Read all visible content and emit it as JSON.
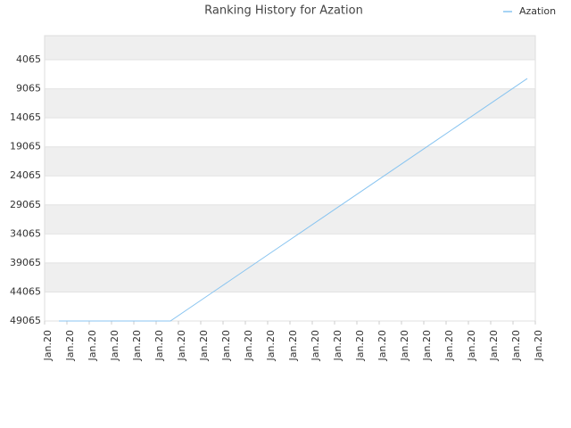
{
  "chart_data": {
    "type": "line",
    "title": "Ranking History for Azation",
    "x": [
      0.64,
      1.64,
      2.64,
      3.64,
      4.64,
      5.64,
      6.64,
      7.64,
      8.64,
      9.64,
      10.64,
      11.64,
      12.64,
      13.64,
      14.64,
      15.64,
      16.64,
      17.64,
      18.64,
      19.64,
      20.64,
      21.64
    ],
    "series": [
      {
        "name": "Azation",
        "color": "#88c4f0",
        "values": [
          49065,
          49065,
          49065,
          49065,
          49065,
          49065,
          46454,
          43844,
          41233,
          38623,
          36012,
          33402,
          30791,
          28181,
          25570,
          22960,
          20349,
          17738,
          15128,
          12517,
          9907,
          7296
        ]
      }
    ],
    "xlim": [
      0,
      22
    ],
    "xticks": [
      {
        "value": 0,
        "label": "Jan.20"
      },
      {
        "value": 1,
        "label": "Jan.20"
      },
      {
        "value": 2,
        "label": "Jan.20"
      },
      {
        "value": 3,
        "label": "Jan.20"
      },
      {
        "value": 4,
        "label": "Jan.20"
      },
      {
        "value": 5,
        "label": "Jan.20"
      },
      {
        "value": 6,
        "label": "Jan.20"
      },
      {
        "value": 7,
        "label": "Jan.20"
      },
      {
        "value": 8,
        "label": "Jan.20"
      },
      {
        "value": 9,
        "label": "Jan.20"
      },
      {
        "value": 10,
        "label": "Jan.20"
      },
      {
        "value": 11,
        "label": "Jan.20"
      },
      {
        "value": 12,
        "label": "Jan.20"
      },
      {
        "value": 13,
        "label": "Jan.20"
      },
      {
        "value": 14,
        "label": "Jan.20"
      },
      {
        "value": 15,
        "label": "Jan.20"
      },
      {
        "value": 16,
        "label": "Jan.20"
      },
      {
        "value": 17,
        "label": "Jan.20"
      },
      {
        "value": 18,
        "label": "Jan.20"
      },
      {
        "value": 19,
        "label": "Jan.20"
      },
      {
        "value": 20,
        "label": "Jan.20"
      },
      {
        "value": 21,
        "label": "Jan.20"
      },
      {
        "value": 22,
        "label": "Jan.20"
      }
    ],
    "ylim": [
      49065,
      -89
    ],
    "yticks": [
      4065,
      9065,
      14065,
      19065,
      24065,
      29065,
      34065,
      39065,
      44065,
      49065
    ],
    "grid": true,
    "legend": "top-right"
  }
}
